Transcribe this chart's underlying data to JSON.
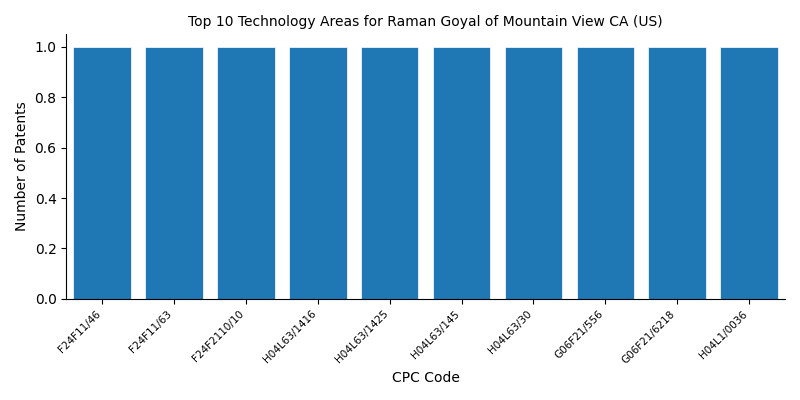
{
  "title": "Top 10 Technology Areas for Raman Goyal of Mountain View CA (US)",
  "xlabel": "CPC Code",
  "ylabel": "Number of Patents",
  "categories": [
    "F24F11/46",
    "F24F11/63",
    "F24F2110/10",
    "H04L63/1416",
    "H04L63/1425",
    "H04L63/145",
    "H04L63/30",
    "G06F21/556",
    "G06F21/6218",
    "H04L1/0036"
  ],
  "values": [
    1,
    1,
    1,
    1,
    1,
    1,
    1,
    1,
    1,
    1
  ],
  "bar_color": "#1f77b4",
  "bar_width": 0.8,
  "ylim": [
    0,
    1.05
  ],
  "yticks": [
    0.0,
    0.2,
    0.4,
    0.6,
    0.8,
    1.0
  ],
  "figsize": [
    8.0,
    4.0
  ],
  "dpi": 100,
  "title_fontsize": 10,
  "axis_label_fontsize": 10,
  "tick_fontsize": 7.5
}
